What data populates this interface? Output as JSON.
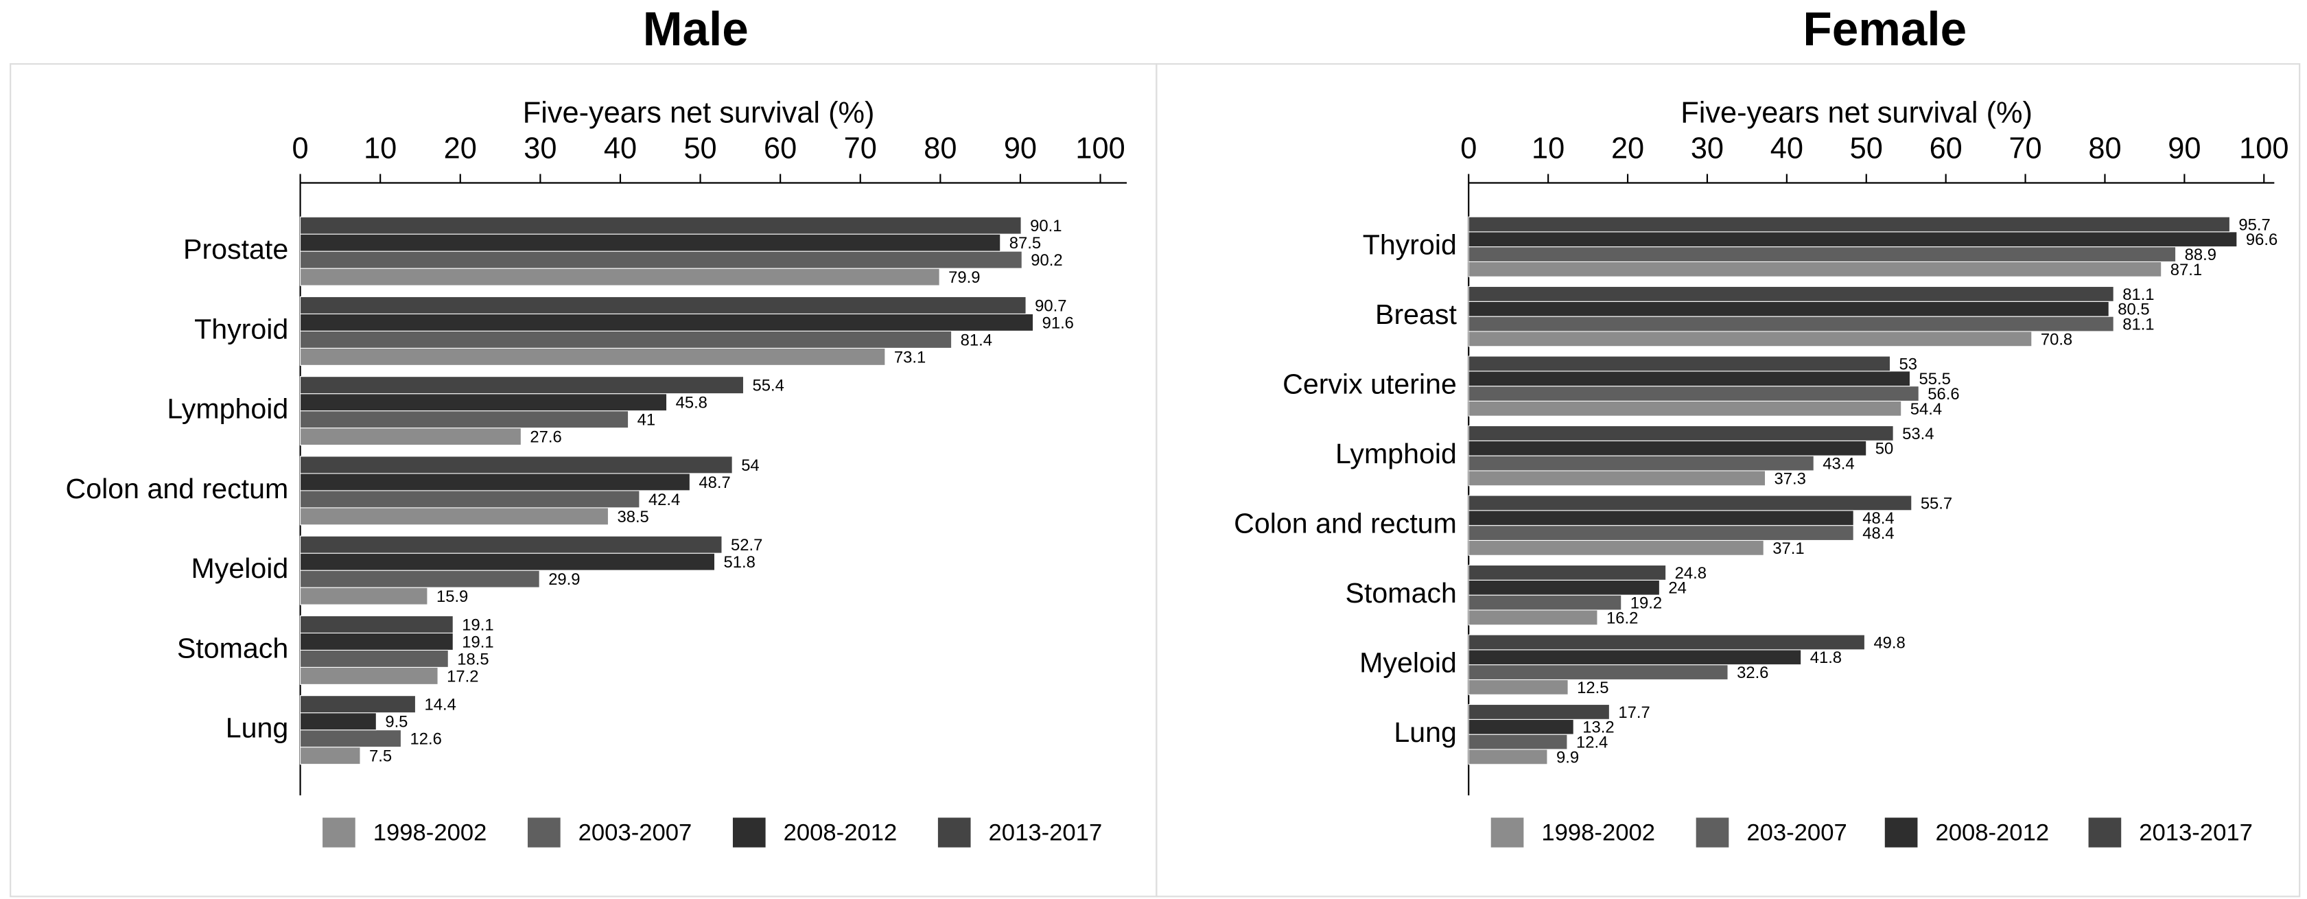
{
  "chart_data": [
    {
      "type": "bar",
      "orientation": "horizontal",
      "title": "Male",
      "x_label": "Five-years net survival (%)",
      "categories": [
        "Prostate",
        "Thyroid",
        "Lymphoid",
        "Colon and rectum",
        "Myeloid",
        "Stomach",
        "Lung"
      ],
      "series": [
        {
          "name": "1998-2002",
          "color": "#8c8c8c",
          "values": [
            79.9,
            73.1,
            27.6,
            38.5,
            15.9,
            17.2,
            7.5
          ]
        },
        {
          "name": "2003-2007",
          "color": "#5f5f5f",
          "values": [
            90.2,
            81.4,
            41,
            42.4,
            29.9,
            18.5,
            12.6
          ]
        },
        {
          "name": "2008-2012",
          "color": "#2e2e2e",
          "values": [
            87.5,
            91.6,
            45.8,
            48.7,
            51.8,
            19.1,
            9.5
          ]
        },
        {
          "name": "2013-2017",
          "color": "#444444",
          "values": [
            90.1,
            90.7,
            55.4,
            54,
            52.7,
            19.1,
            14.4
          ]
        }
      ],
      "xlim": [
        0,
        103.3
      ],
      "xticks": [
        0,
        10,
        20,
        30,
        40,
        50,
        60,
        70,
        80,
        90,
        100
      ],
      "legend": "bottom"
    },
    {
      "type": "bar",
      "orientation": "horizontal",
      "title": "Female",
      "x_label": "Five-years net survival (%)",
      "categories": [
        "Thyroid",
        "Breast",
        "Cervix uterine",
        "Lymphoid",
        "Colon and rectum",
        "Stomach",
        "Myeloid",
        "Lung"
      ],
      "series": [
        {
          "name": "1998-2002",
          "color": "#8c8c8c",
          "values": [
            87.1,
            70.8,
            54.4,
            37.3,
            37.1,
            16.2,
            12.5,
            9.9
          ]
        },
        {
          "name": "203-2007",
          "color": "#5f5f5f",
          "values": [
            88.9,
            81.1,
            56.6,
            43.4,
            48.4,
            19.2,
            32.6,
            12.4
          ]
        },
        {
          "name": "2008-2012",
          "color": "#2e2e2e",
          "values": [
            96.6,
            80.5,
            55.5,
            50,
            48.4,
            24,
            41.8,
            13.2
          ]
        },
        {
          "name": "2013-2017",
          "color": "#444444",
          "values": [
            95.7,
            81.1,
            53,
            53.4,
            55.7,
            24.8,
            49.8,
            17.7
          ]
        }
      ],
      "xlim": [
        0,
        101.3
      ],
      "xticks": [
        0,
        10,
        20,
        30,
        40,
        50,
        60,
        70,
        80,
        90,
        100
      ],
      "legend": "bottom"
    }
  ]
}
